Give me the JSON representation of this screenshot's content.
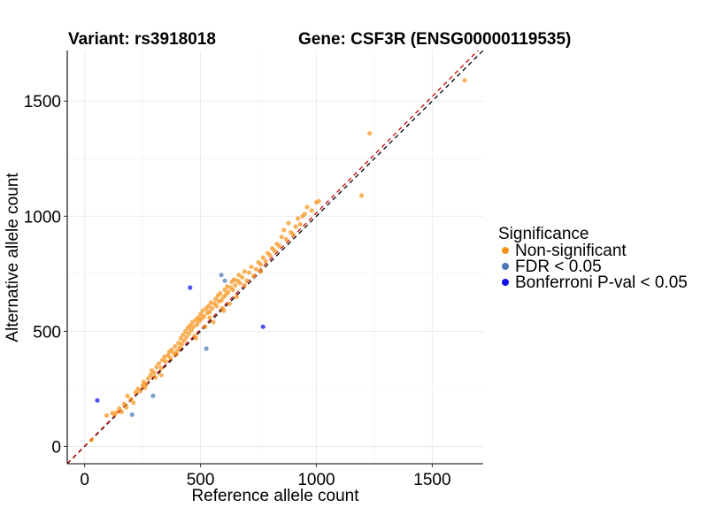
{
  "chart_data": {
    "type": "scatter",
    "title_left": "Variant: rs3918018",
    "title_right": "Gene: CSF3R (ENSG00000119535)",
    "xlabel": "Reference allele count",
    "ylabel": "Alternative allele count",
    "xlim": [
      -75,
      1720
    ],
    "ylim": [
      -75,
      1720
    ],
    "xticks": [
      0,
      500,
      1000,
      1500
    ],
    "yticks": [
      0,
      500,
      1000,
      1500
    ],
    "grid": true,
    "reference_lines": [
      {
        "style": "dashed",
        "color": "#000000",
        "slope": 1,
        "intercept": 0
      },
      {
        "style": "dashed",
        "color": "#cc0000",
        "slope": 1.012,
        "intercept": 2
      }
    ],
    "legend": {
      "title": "Significance",
      "placement": "right",
      "entries": [
        {
          "label": "Non-significant",
          "color": "#f7941d"
        },
        {
          "label": "FDR < 0.05",
          "color": "#4a78b5"
        },
        {
          "label": "Bonferroni P-val < 0.05",
          "color": "#1010ee"
        }
      ]
    },
    "series": [
      {
        "name": "Non-significant",
        "color": "#f7941d",
        "points": [
          [
            30,
            28
          ],
          [
            95,
            135
          ],
          [
            120,
            145
          ],
          [
            130,
            140
          ],
          [
            140,
            150
          ],
          [
            150,
            165
          ],
          [
            160,
            150
          ],
          [
            170,
            185
          ],
          [
            180,
            170
          ],
          [
            185,
            220
          ],
          [
            200,
            205
          ],
          [
            210,
            190
          ],
          [
            220,
            235
          ],
          [
            230,
            250
          ],
          [
            240,
            240
          ],
          [
            250,
            265
          ],
          [
            255,
            280
          ],
          [
            265,
            270
          ],
          [
            275,
            295
          ],
          [
            285,
            310
          ],
          [
            290,
            330
          ],
          [
            300,
            320
          ],
          [
            305,
            300
          ],
          [
            310,
            345
          ],
          [
            320,
            360
          ],
          [
            330,
            340
          ],
          [
            335,
            375
          ],
          [
            345,
            390
          ],
          [
            350,
            370
          ],
          [
            360,
            395
          ],
          [
            365,
            410
          ],
          [
            370,
            385
          ],
          [
            375,
            420
          ],
          [
            385,
            405
          ],
          [
            390,
            435
          ],
          [
            400,
            415
          ],
          [
            405,
            450
          ],
          [
            410,
            430
          ],
          [
            415,
            470
          ],
          [
            420,
            445
          ],
          [
            425,
            485
          ],
          [
            430,
            460
          ],
          [
            435,
            500
          ],
          [
            440,
            475
          ],
          [
            445,
            515
          ],
          [
            450,
            490
          ],
          [
            455,
            525
          ],
          [
            460,
            505
          ],
          [
            465,
            540
          ],
          [
            470,
            520
          ],
          [
            475,
            480
          ],
          [
            480,
            550
          ],
          [
            485,
            530
          ],
          [
            490,
            560
          ],
          [
            495,
            545
          ],
          [
            500,
            575
          ],
          [
            505,
            555
          ],
          [
            510,
            590
          ],
          [
            515,
            565
          ],
          [
            520,
            520
          ],
          [
            525,
            600
          ],
          [
            530,
            580
          ],
          [
            535,
            610
          ],
          [
            540,
            585
          ],
          [
            545,
            625
          ],
          [
            550,
            600
          ],
          [
            555,
            540
          ],
          [
            560,
            620
          ],
          [
            565,
            640
          ],
          [
            570,
            610
          ],
          [
            575,
            655
          ],
          [
            580,
            630
          ],
          [
            585,
            665
          ],
          [
            590,
            635
          ],
          [
            595,
            600
          ],
          [
            600,
            650
          ],
          [
            605,
            680
          ],
          [
            610,
            660
          ],
          [
            615,
            695
          ],
          [
            620,
            670
          ],
          [
            625,
            620
          ],
          [
            630,
            690
          ],
          [
            635,
            715
          ],
          [
            640,
            680
          ],
          [
            645,
            725
          ],
          [
            650,
            700
          ],
          [
            655,
            650
          ],
          [
            660,
            720
          ],
          [
            665,
            745
          ],
          [
            670,
            710
          ],
          [
            680,
            735
          ],
          [
            690,
            760
          ],
          [
            700,
            720
          ],
          [
            710,
            755
          ],
          [
            720,
            780
          ],
          [
            730,
            740
          ],
          [
            740,
            770
          ],
          [
            750,
            800
          ],
          [
            760,
            790
          ],
          [
            770,
            820
          ],
          [
            780,
            805
          ],
          [
            790,
            840
          ],
          [
            800,
            830
          ],
          [
            810,
            860
          ],
          [
            820,
            850
          ],
          [
            830,
            880
          ],
          [
            840,
            870
          ],
          [
            850,
            910
          ],
          [
            860,
            940
          ],
          [
            870,
            900
          ],
          [
            880,
            970
          ],
          [
            890,
            930
          ],
          [
            900,
            920
          ],
          [
            910,
            955
          ],
          [
            920,
            990
          ],
          [
            930,
            965
          ],
          [
            940,
            1000
          ],
          [
            950,
            1010
          ],
          [
            960,
            1040
          ],
          [
            980,
            1025
          ],
          [
            1000,
            1060
          ],
          [
            1010,
            1065
          ],
          [
            1195,
            1090
          ],
          [
            1230,
            1360
          ],
          [
            1640,
            1590
          ],
          [
            330,
            310
          ],
          [
            260,
            255
          ],
          [
            600,
            590
          ],
          [
            540,
            560
          ],
          [
            480,
            470
          ],
          [
            690,
            700
          ],
          [
            760,
            760
          ],
          [
            395,
            400
          ]
        ]
      },
      {
        "name": "FDR < 0.05",
        "color": "#4a78b5",
        "points": [
          [
            205,
            138
          ],
          [
            295,
            220
          ],
          [
            525,
            425
          ],
          [
            590,
            745
          ],
          [
            605,
            720
          ]
        ]
      },
      {
        "name": "Bonferroni P-val < 0.05",
        "color": "#1010ee",
        "points": [
          [
            55,
            200
          ],
          [
            455,
            690
          ],
          [
            770,
            520
          ]
        ]
      }
    ]
  }
}
